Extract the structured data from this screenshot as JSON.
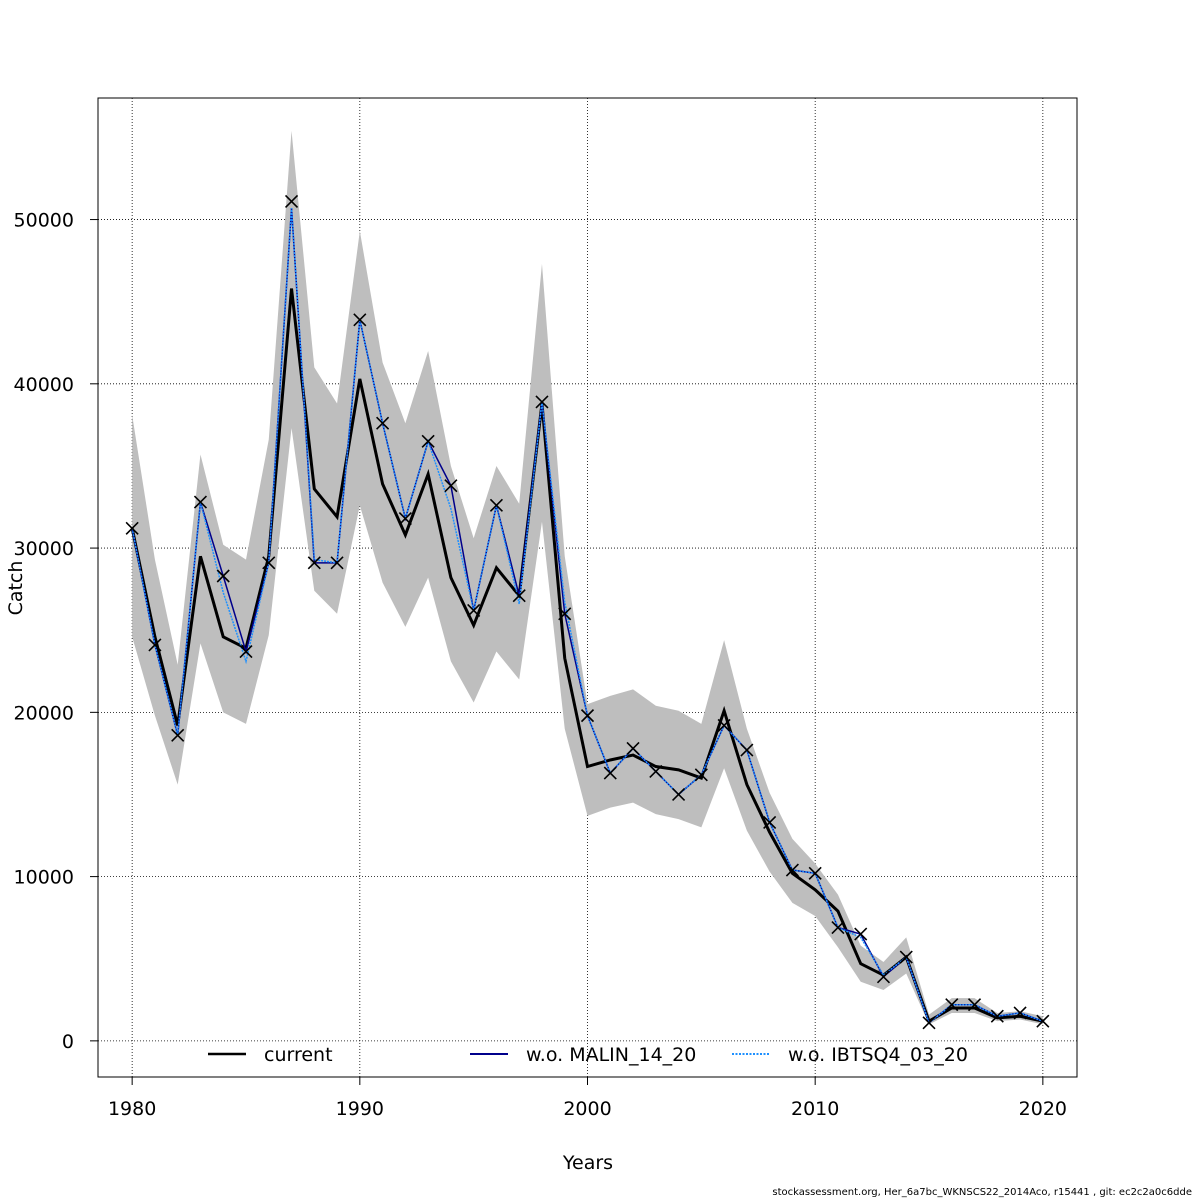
{
  "footer": "stockassessment.org, Her_6a7bc_WKNSCS22_2014Aco, r15441 , git: ec2c2a0c6dde",
  "colors": {
    "band": "#bebebe",
    "current": "#000000",
    "malin": "#00008b",
    "ibts": "#1e90ff",
    "grid": "#000000"
  },
  "chart_data": {
    "type": "line",
    "xlabel": "Years",
    "ylabel": "Catch",
    "xlim": [
      1978.5,
      2021.5
    ],
    "ylim": [
      -2200,
      57400
    ],
    "xticks": [
      1980,
      1990,
      2000,
      2010,
      2020
    ],
    "yticks": [
      0,
      10000,
      20000,
      30000,
      40000,
      50000
    ],
    "grid": true,
    "legend_position": "bottom",
    "x": [
      1980,
      1981,
      1982,
      1983,
      1984,
      1985,
      1986,
      1987,
      1988,
      1989,
      1990,
      1991,
      1992,
      1993,
      1994,
      1995,
      1996,
      1997,
      1998,
      1999,
      2000,
      2001,
      2002,
      2003,
      2004,
      2005,
      2006,
      2007,
      2008,
      2009,
      2010,
      2011,
      2012,
      2013,
      2014,
      2015,
      2016,
      2017,
      2018,
      2019,
      2020
    ],
    "observed": {
      "name": "observed catch",
      "marker": "x",
      "values": [
        31200,
        24100,
        18600,
        32800,
        28300,
        23700,
        29100,
        51100,
        29100,
        29100,
        43900,
        37600,
        31800,
        36500,
        33800,
        26200,
        32600,
        27100,
        38900,
        26000,
        19800,
        16300,
        17800,
        16400,
        15000,
        16200,
        19200,
        17700,
        13300,
        10400,
        10200,
        6900,
        6500,
        3900,
        5100,
        1100,
        2200,
        2200,
        1500,
        1700,
        1200
      ]
    },
    "band": {
      "name": "confidence band",
      "upper": [
        38100,
        29300,
        22900,
        35700,
        30200,
        29300,
        36600,
        55400,
        41000,
        38800,
        49300,
        41300,
        37600,
        42000,
        35000,
        30600,
        35000,
        32700,
        47300,
        29500,
        20500,
        21000,
        21400,
        20400,
        20100,
        19300,
        24400,
        19000,
        15100,
        12300,
        10800,
        8900,
        5800,
        4800,
        6300,
        1600,
        2600,
        2600,
        1700,
        1800,
        1500
      ],
      "lower": [
        24600,
        19800,
        15600,
        24200,
        20000,
        19300,
        24700,
        37300,
        27400,
        26000,
        32600,
        27900,
        25200,
        28200,
        23100,
        20600,
        23700,
        22000,
        31600,
        19000,
        13700,
        14200,
        14500,
        13800,
        13500,
        13000,
        16600,
        12800,
        10300,
        8400,
        7600,
        5700,
        3600,
        3100,
        4100,
        1000,
        1700,
        1700,
        1200,
        1300,
        1000
      ]
    },
    "series": [
      {
        "name": "current",
        "style": "solid",
        "color_key": "current",
        "values": [
          31200,
          24600,
          19200,
          29500,
          24600,
          23900,
          29500,
          45800,
          33600,
          31900,
          40300,
          33900,
          30800,
          34500,
          28200,
          25300,
          28800,
          27100,
          38800,
          23300,
          16700,
          17100,
          17400,
          16700,
          16500,
          16000,
          20100,
          15600,
          12700,
          10200,
          9200,
          7900,
          4700,
          4000,
          5100,
          1200,
          2000,
          2000,
          1400,
          1500,
          1200
        ]
      },
      {
        "name": "w.o. MALIN_14_20",
        "style": "solid",
        "color_key": "malin",
        "values": [
          31200,
          24100,
          18600,
          32800,
          28300,
          23700,
          29100,
          50700,
          29100,
          29100,
          43900,
          37600,
          31800,
          36500,
          33800,
          26200,
          32600,
          27100,
          38900,
          26000,
          19800,
          16300,
          17800,
          16400,
          15000,
          16200,
          19200,
          17700,
          13300,
          10400,
          10200,
          6900,
          6500,
          3900,
          5100,
          1100,
          2200,
          2200,
          1500,
          1700,
          1200
        ]
      },
      {
        "name": "w.o. IBTSQ4_03_20",
        "style": "dotted",
        "color_key": "ibts",
        "values": [
          31200,
          24100,
          18600,
          32800,
          27300,
          23100,
          29100,
          50700,
          29300,
          29100,
          43900,
          37600,
          31800,
          36500,
          32400,
          26200,
          32600,
          26600,
          38900,
          26700,
          19800,
          16300,
          17800,
          16400,
          15000,
          16200,
          19200,
          17700,
          13300,
          10400,
          10200,
          6900,
          6300,
          4000,
          5100,
          1100,
          2200,
          2200,
          1500,
          1700,
          1200
        ]
      }
    ]
  }
}
